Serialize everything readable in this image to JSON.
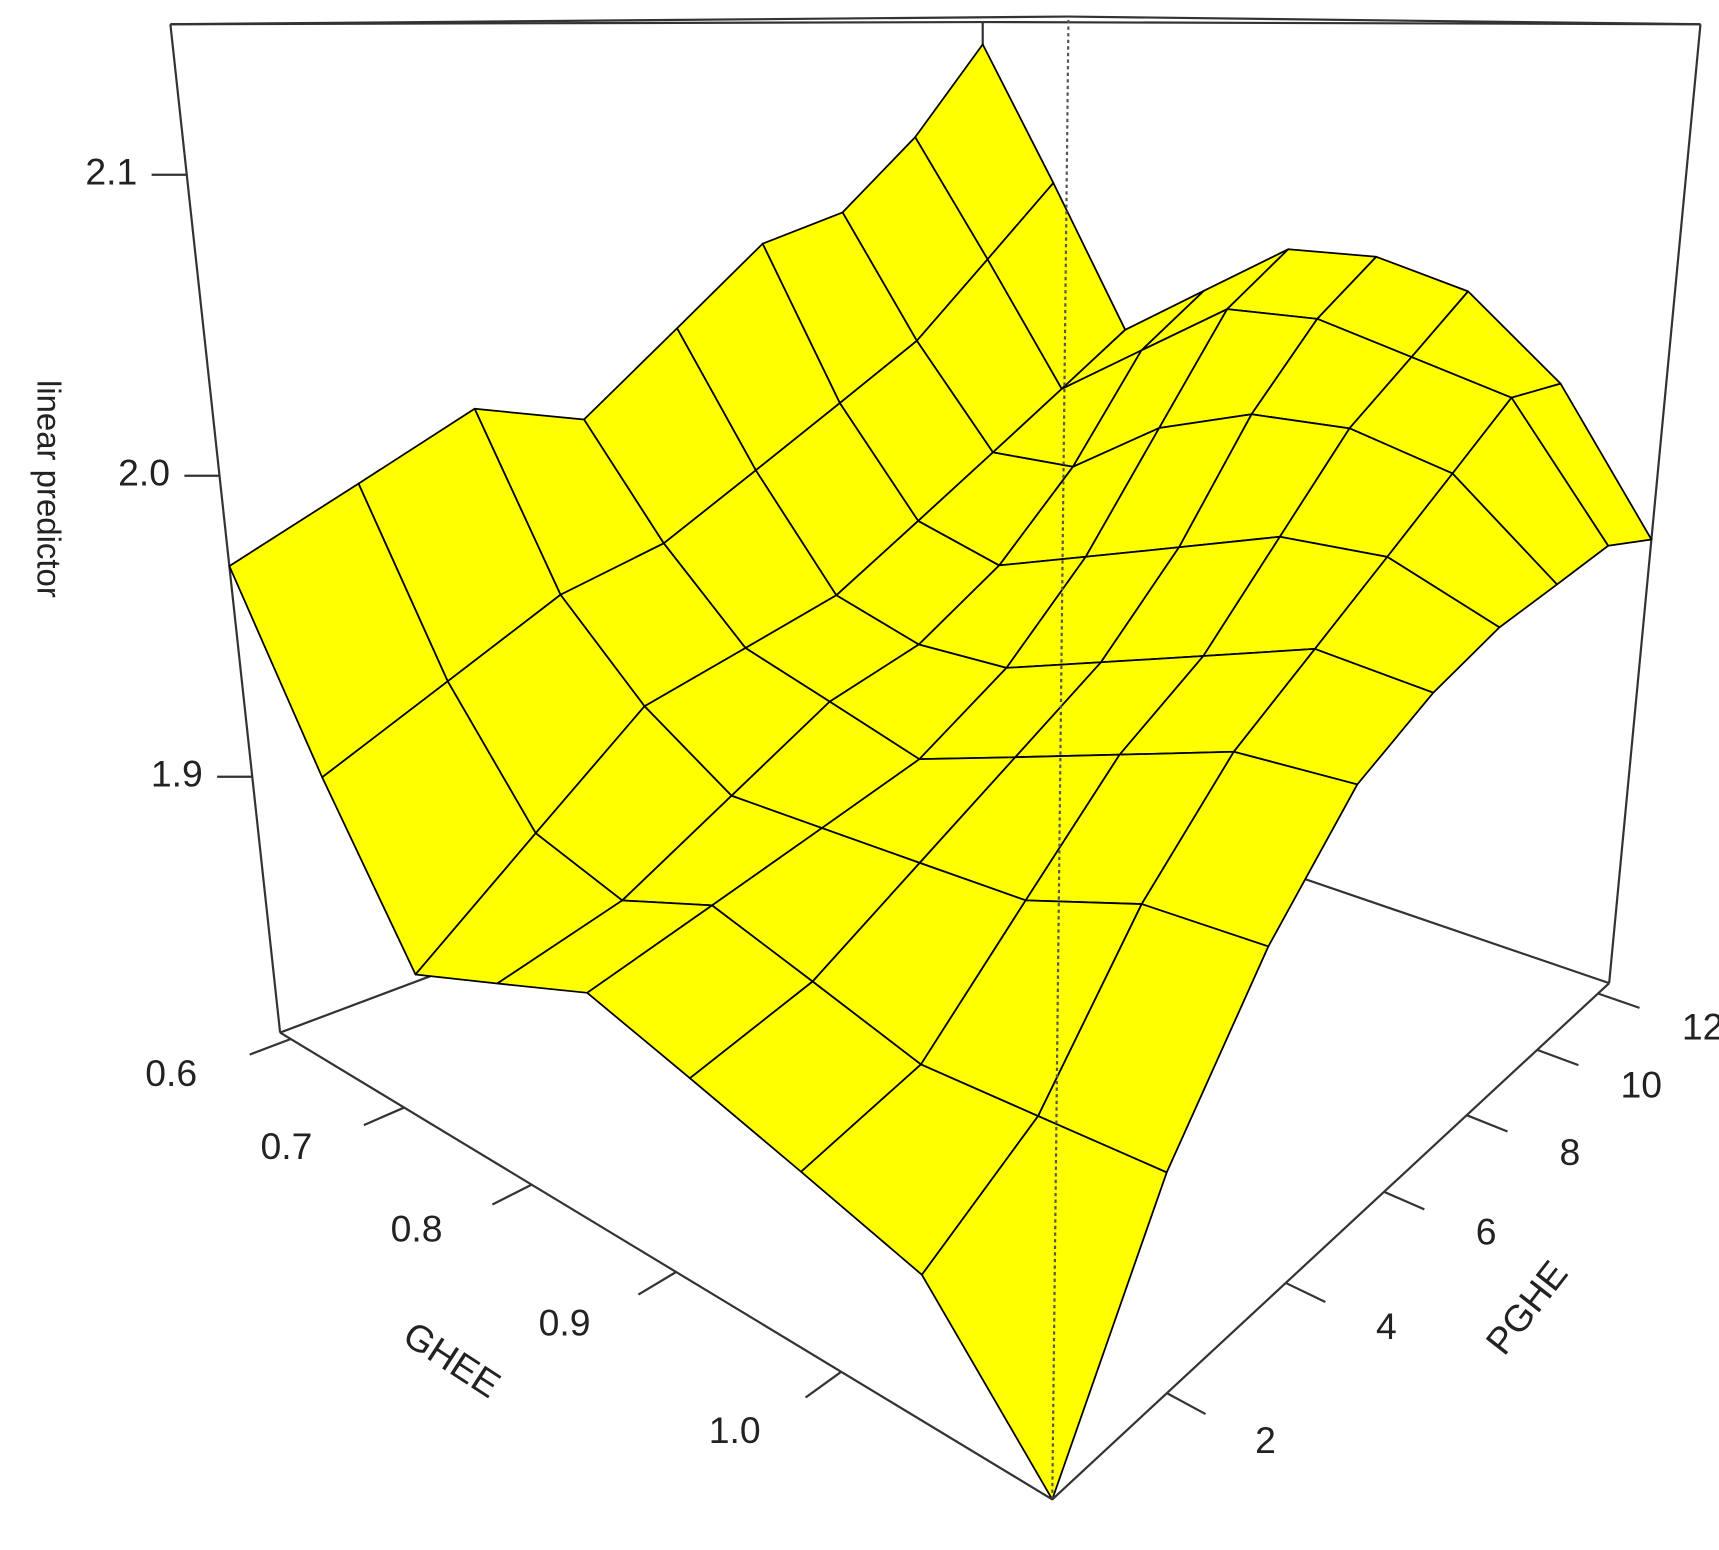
{
  "chart_data": {
    "type": "surface",
    "xlabel": "GHEE",
    "ylabel": "PGHE",
    "zlabel": "linear predictor",
    "color": "#ffff00",
    "edge_color": "#000000",
    "x": [
      0.59,
      0.655,
      0.72,
      0.785,
      0.85,
      0.915,
      0.98,
      1.045,
      1.11
    ],
    "y": [
      0.4,
      1.9,
      3.4,
      4.9,
      6.4,
      7.9,
      9.4,
      10.9,
      12.4
    ],
    "z": [
      [
        1.97,
        1.99,
        2.01,
        2.0,
        2.03,
        2.06,
        2.07,
        2.1,
        2.14
      ],
      [
        1.91,
        1.93,
        1.95,
        1.96,
        1.98,
        2.0,
        2.02,
        2.05,
        2.08
      ],
      [
        1.86,
        1.89,
        1.92,
        1.93,
        1.94,
        1.96,
        1.98,
        2.0,
        2.02
      ],
      [
        1.87,
        1.88,
        1.9,
        1.92,
        1.93,
        1.95,
        1.98,
        2.02,
        2.04
      ],
      [
        1.88,
        1.89,
        1.9,
        1.91,
        1.93,
        1.96,
        2.0,
        2.04,
        2.06
      ],
      [
        1.87,
        1.88,
        1.9,
        1.92,
        1.94,
        1.97,
        2.01,
        2.04,
        2.06
      ],
      [
        1.86,
        1.87,
        1.9,
        1.93,
        1.95,
        1.98,
        2.01,
        2.03,
        2.05
      ],
      [
        1.85,
        1.87,
        1.91,
        1.94,
        1.96,
        1.98,
        2.0,
        2.02,
        2.02
      ],
      [
        1.815,
        1.87,
        1.91,
        1.94,
        1.955,
        1.965,
        1.97,
        1.975,
        1.97
      ]
    ],
    "xlim": [
      0.59,
      1.11
    ],
    "ylim": [
      0.4,
      12.4
    ],
    "zlim": [
      1.815,
      2.15
    ],
    "xticks": [
      0.6,
      0.7,
      0.8,
      0.9,
      {
        "value": 1,
        "label": "1.0"
      }
    ],
    "yticks": [
      2,
      4,
      6,
      8,
      10,
      12
    ],
    "zticks": [
      1.9,
      {
        "value": 2,
        "label": "2.0"
      },
      2.1
    ]
  }
}
